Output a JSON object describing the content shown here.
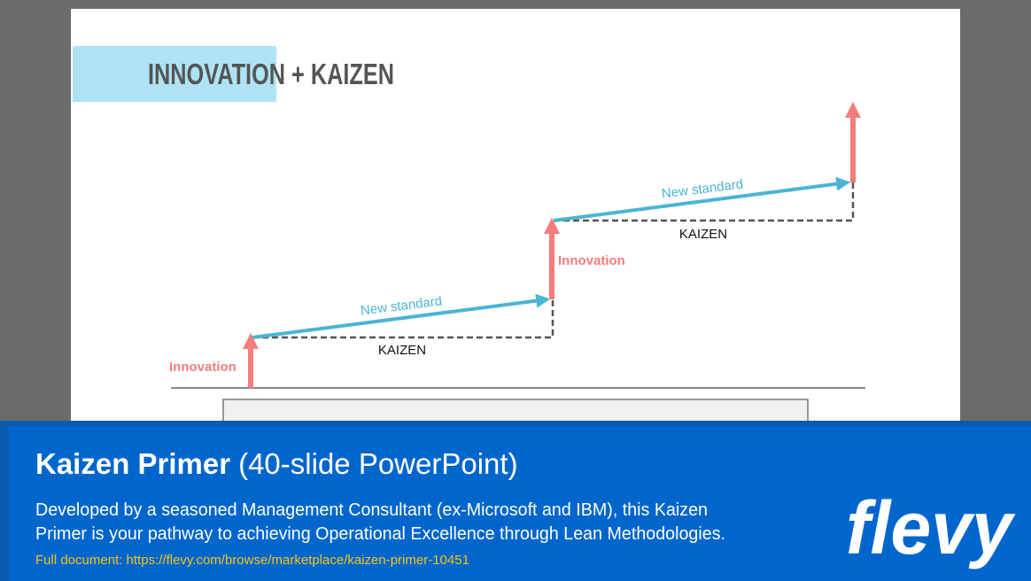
{
  "slide": {
    "title": "INNOVATION + KAIZEN",
    "diagram": {
      "innovation_1": "Innovation",
      "new_standard_1": "New standard",
      "kaizen_1": "KAIZEN",
      "innovation_2": "Innovation",
      "new_standard_2": "New standard",
      "kaizen_2": "KAIZEN"
    }
  },
  "banner": {
    "title": "Kaizen Primer",
    "subtitle": "(40-slide PowerPoint)",
    "description": [
      "Developed by a seasoned Management Consultant (ex-Microsoft and IBM), this Kaizen",
      "Primer is your pathway to achieving Operational Excellence through Lean Methodologies."
    ],
    "link": "Full document: https://flevy.com/browse/marketplace/kaizen-primer-10451",
    "logo": "flevy"
  }
}
